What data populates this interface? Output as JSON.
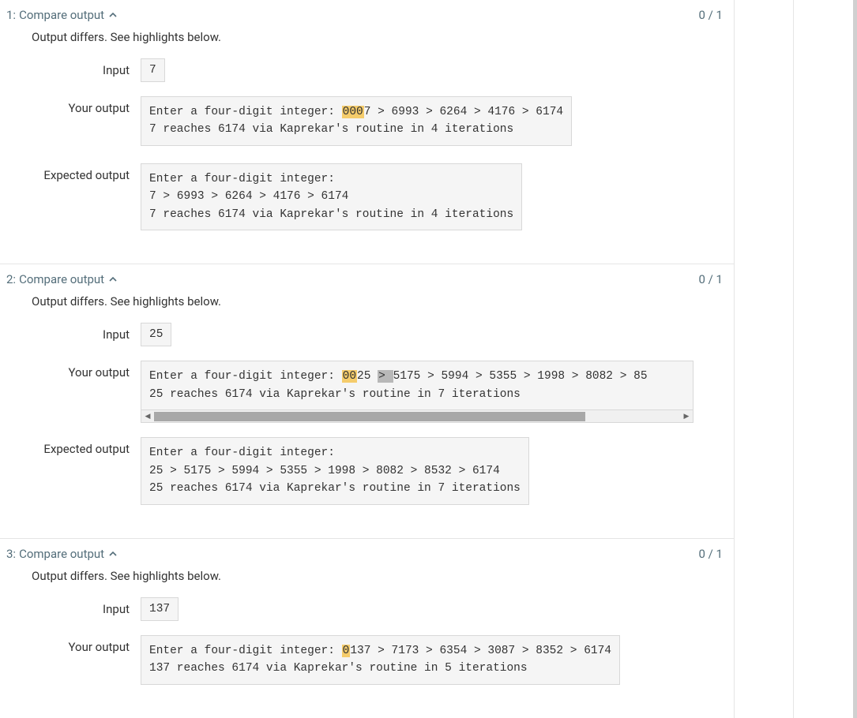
{
  "colors": {
    "text_muted": "#546e7a",
    "text": "#333333",
    "border": "#d8d8d8",
    "code_bg": "#f5f5f5",
    "highlight": "#f5cc6b",
    "highlight_gray": "#b8b8b8",
    "scrollbar_thumb": "#a8a8a8",
    "divider": "#e5e5e5"
  },
  "labels": {
    "diff_msg": "Output differs. See highlights below.",
    "input": "Input",
    "your_output": "Your output",
    "expected_output": "Expected output"
  },
  "tests": [
    {
      "index": "1",
      "title": "Compare output",
      "score": "0 / 1",
      "input": "7",
      "your_output": {
        "segments": [
          [
            {
              "t": "Enter a four-digit integer: "
            },
            {
              "t": "000",
              "hl": "yellow"
            },
            {
              "t": "7 > 6993 > 6264 > 4176 > 6174"
            }
          ],
          [
            {
              "t": "7 reaches 6174 via Kaprekar's routine in 4 iterations"
            }
          ]
        ],
        "width_mode": "fit",
        "has_scroll": false
      },
      "expected_output": {
        "lines": [
          "Enter a four-digit integer:",
          "7 > 6993 > 6264 > 4176 > 6174",
          "7 reaches 6174 via Kaprekar's routine in 4 iterations"
        ],
        "width_mode": "fit"
      }
    },
    {
      "index": "2",
      "title": "Compare output",
      "score": "0 / 1",
      "input": "25",
      "your_output": {
        "segments": [
          [
            {
              "t": "Enter a four-digit integer: "
            },
            {
              "t": "00",
              "hl": "yellow"
            },
            {
              "t": "25 "
            },
            {
              "t": "> ",
              "hl": "gray"
            },
            {
              "t": "5175 > 5994 > 5355 > 1998 > 8082 > 85"
            }
          ],
          [
            {
              "t": "25 reaches 6174 via Kaprekar's routine in 7 iterations"
            }
          ]
        ],
        "width_mode": "wide",
        "has_scroll": true,
        "scroll_thumb_pct": 82
      },
      "expected_output": {
        "lines": [
          "Enter a four-digit integer:",
          "25 > 5175 > 5994 > 5355 > 1998 > 8082 > 8532 > 6174",
          "25 reaches 6174 via Kaprekar's routine in 7 iterations"
        ],
        "width_mode": "fit"
      }
    },
    {
      "index": "3",
      "title": "Compare output",
      "score": "0 / 1",
      "input": "137",
      "your_output": {
        "segments": [
          [
            {
              "t": "Enter a four-digit integer: "
            },
            {
              "t": "0",
              "hl": "yellow"
            },
            {
              "t": "137 > 7173 > 6354 > 3087 > 8352 > 6174"
            }
          ],
          [
            {
              "t": "137 reaches 6174 via Kaprekar's routine in 5 iterations"
            }
          ]
        ],
        "width_mode": "fit",
        "has_scroll": false
      },
      "expected_output": null
    }
  ]
}
